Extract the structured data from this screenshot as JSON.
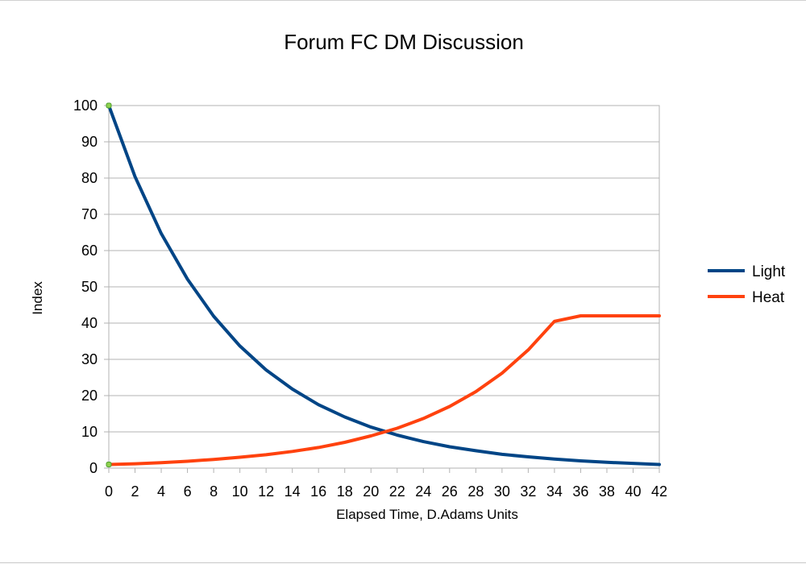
{
  "chart_data": {
    "type": "line",
    "title": "Forum FC DM Discussion",
    "xlabel": "Elapsed Time, D.Adams Units",
    "ylabel": "Index",
    "xlim": [
      0,
      42
    ],
    "ylim": [
      0,
      100
    ],
    "x_ticks": [
      0,
      2,
      4,
      6,
      8,
      10,
      12,
      14,
      16,
      18,
      20,
      22,
      24,
      26,
      28,
      30,
      32,
      34,
      36,
      38,
      40,
      42
    ],
    "y_ticks": [
      0,
      10,
      20,
      30,
      40,
      50,
      60,
      70,
      80,
      90,
      100
    ],
    "grid": "horizontal",
    "legend_position": "right",
    "x": [
      0,
      2,
      4,
      6,
      8,
      10,
      12,
      14,
      16,
      18,
      20,
      22,
      24,
      26,
      28,
      30,
      32,
      34,
      36,
      38,
      40,
      42
    ],
    "series": [
      {
        "name": "Light",
        "color": "#004586",
        "values": [
          100,
          80.4,
          64.7,
          52.1,
          41.9,
          33.7,
          27.1,
          21.8,
          17.5,
          14.1,
          11.3,
          9.1,
          7.3,
          5.9,
          4.8,
          3.8,
          3.1,
          2.5,
          2.0,
          1.6,
          1.3,
          1.0
        ]
      },
      {
        "name": "Heat",
        "color": "#ff420e",
        "values": [
          1.0,
          1.2,
          1.5,
          1.9,
          2.4,
          3.0,
          3.7,
          4.6,
          5.7,
          7.1,
          8.9,
          11.0,
          13.7,
          17.0,
          21.1,
          26.2,
          32.6,
          40.5,
          42,
          42,
          42,
          42
        ]
      }
    ]
  }
}
